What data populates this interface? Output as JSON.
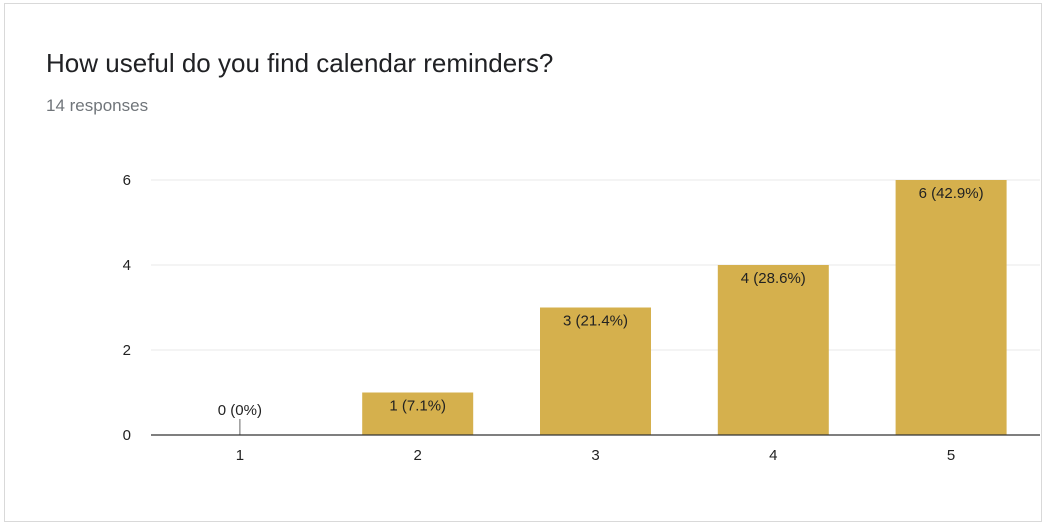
{
  "question": {
    "title": "How useful do you find calendar reminders?",
    "responses": "14 responses"
  },
  "colors": {
    "bar": "#d5b04d",
    "grid": "#e9e9e9",
    "axis": "#333333",
    "text": "#222222"
  },
  "chart_data": {
    "type": "bar",
    "title": "",
    "xlabel": "",
    "ylabel": "",
    "categories": [
      "1",
      "2",
      "3",
      "4",
      "5"
    ],
    "values": [
      0,
      1,
      3,
      4,
      6
    ],
    "data_labels": [
      "0 (0%)",
      "1 (7.1%)",
      "3 (21.4%)",
      "4 (28.6%)",
      "6 (42.9%)"
    ],
    "ylim": [
      0,
      6
    ],
    "yticks": [
      0,
      2,
      4,
      6
    ],
    "grid": true,
    "legend": "none"
  }
}
